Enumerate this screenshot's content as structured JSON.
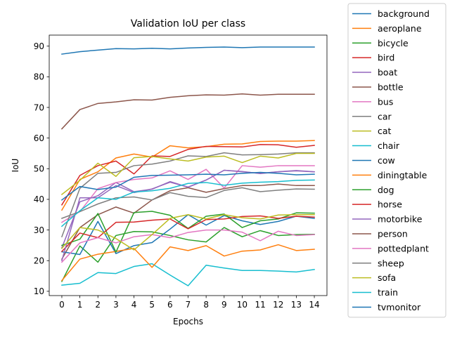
{
  "chart_data": {
    "type": "line",
    "title": "Validation IoU per class",
    "xlabel": "Epochs",
    "ylabel": "IoU",
    "xlim": [
      -0.7,
      14.7
    ],
    "ylim": [
      8.6,
      93.6
    ],
    "x": [
      0,
      1,
      2,
      3,
      4,
      5,
      6,
      7,
      8,
      9,
      10,
      11,
      12,
      13,
      14
    ],
    "x_ticks": [
      "0",
      "1",
      "2",
      "3",
      "4",
      "5",
      "6",
      "7",
      "8",
      "9",
      "10",
      "11",
      "12",
      "13",
      "14"
    ],
    "y_ticks": [
      10,
      20,
      30,
      40,
      50,
      60,
      70,
      80,
      90
    ],
    "grid": false,
    "legend_position": "outside-right",
    "series": [
      {
        "name": "background",
        "color": "#1f77b4",
        "values": [
          87.4,
          88.2,
          88.7,
          89.2,
          89.1,
          89.3,
          89.1,
          89.4,
          89.6,
          89.7,
          89.5,
          89.7,
          89.7,
          89.7,
          89.7
        ]
      },
      {
        "name": "aeroplane",
        "color": "#ff7f0e",
        "values": [
          36.5,
          46.5,
          49.0,
          53.5,
          54.8,
          53.8,
          57.5,
          56.8,
          57.2,
          58.0,
          58.1,
          58.9,
          59.0,
          59.0,
          59.2
        ]
      },
      {
        "name": "bicycle",
        "color": "#2ca02c",
        "values": [
          13.2,
          24.8,
          19.5,
          28.2,
          29.5,
          29.4,
          28.2,
          26.8,
          26.1,
          30.8,
          27.8,
          29.8,
          28.2,
          28.5,
          28.6
        ]
      },
      {
        "name": "bird",
        "color": "#d62728",
        "values": [
          38.2,
          47.8,
          51.0,
          52.5,
          48.3,
          54.2,
          54.0,
          56.3,
          57.3,
          57.2,
          57.1,
          57.9,
          57.8,
          57.0,
          57.6
        ]
      },
      {
        "name": "boat",
        "color": "#9467bd",
        "values": [
          24.2,
          39.2,
          41.2,
          45.5,
          42.5,
          43.3,
          45.8,
          44.0,
          46.3,
          49.5,
          49.0,
          48.5,
          49.0,
          49.3,
          49.0
        ]
      },
      {
        "name": "bottle",
        "color": "#8c564b",
        "values": [
          20.5,
          30.8,
          35.0,
          37.5,
          35.5,
          39.8,
          42.8,
          43.8,
          42.3,
          43.5,
          44.5,
          44.5,
          45.0,
          44.5,
          44.5
        ]
      },
      {
        "name": "bus",
        "color": "#e377c2",
        "values": [
          32.5,
          36.0,
          43.5,
          45.5,
          46.5,
          47.0,
          49.3,
          46.5,
          49.8,
          43.7,
          51.0,
          50.5,
          51.0,
          51.0,
          51.0
        ]
      },
      {
        "name": "car",
        "color": "#7f7f7f",
        "values": [
          27.8,
          43.6,
          48.5,
          48.8,
          51.0,
          51.5,
          52.5,
          54.2,
          54.0,
          55.2,
          54.5,
          54.6,
          54.8,
          55.2,
          55.2
        ]
      },
      {
        "name": "cat",
        "color": "#bcbd22",
        "values": [
          41.6,
          46.2,
          51.8,
          47.5,
          53.6,
          54.0,
          53.2,
          52.5,
          53.8,
          54.1,
          52.0,
          54.1,
          53.5,
          55.0,
          55.0
        ]
      },
      {
        "name": "chair",
        "color": "#17becf",
        "values": [
          12.0,
          12.6,
          16.1,
          15.8,
          18.1,
          19.0,
          15.3,
          11.8,
          18.5,
          17.6,
          16.8,
          16.8,
          16.6,
          16.3,
          17.1
        ]
      },
      {
        "name": "cow",
        "color": "#1f77b4",
        "values": [
          22.9,
          22.0,
          32.8,
          22.3,
          24.9,
          25.9,
          30.3,
          35.0,
          31.6,
          34.7,
          33.0,
          31.8,
          32.8,
          34.5,
          33.8
        ]
      },
      {
        "name": "diningtable",
        "color": "#ff7f0e",
        "values": [
          13.5,
          20.5,
          22.1,
          23.0,
          24.0,
          17.8,
          24.5,
          23.3,
          24.9,
          21.5,
          23.1,
          23.5,
          25.2,
          23.3,
          23.7
        ]
      },
      {
        "name": "dog",
        "color": "#2ca02c",
        "values": [
          25.0,
          27.0,
          35.4,
          22.8,
          35.7,
          36.1,
          34.8,
          30.5,
          34.5,
          35.2,
          30.8,
          33.0,
          33.6,
          35.6,
          35.5
        ]
      },
      {
        "name": "horse",
        "color": "#d62728",
        "values": [
          23.0,
          29.0,
          27.5,
          32.5,
          32.6,
          33.2,
          33.6,
          30.4,
          33.4,
          33.6,
          34.4,
          34.6,
          33.8,
          34.5,
          34.2
        ]
      },
      {
        "name": "motorbike",
        "color": "#9467bd",
        "values": [
          20.0,
          40.5,
          40.5,
          44.5,
          42.2,
          43.4,
          45.6,
          44.0,
          46.3,
          49.5,
          49.1,
          48.4,
          49.0,
          49.4,
          49.0
        ]
      },
      {
        "name": "person",
        "color": "#8c564b",
        "values": [
          63.0,
          69.3,
          71.3,
          71.8,
          72.5,
          72.4,
          73.3,
          73.8,
          74.1,
          74.0,
          74.4,
          74.0,
          74.3,
          74.3,
          74.3
        ]
      },
      {
        "name": "pottedplant",
        "color": "#e377c2",
        "values": [
          19.5,
          25.8,
          27.5,
          25.8,
          27.8,
          28.5,
          27.5,
          29.2,
          30.0,
          30.0,
          29.3,
          26.5,
          29.6,
          28.2,
          28.5
        ]
      },
      {
        "name": "sheep",
        "color": "#7f7f7f",
        "values": [
          33.8,
          36.0,
          38.5,
          40.5,
          40.8,
          39.8,
          42.2,
          41.0,
          40.6,
          42.9,
          43.8,
          42.5,
          43.0,
          43.4,
          43.3
        ]
      },
      {
        "name": "sofa",
        "color": "#bcbd22",
        "values": [
          24.0,
          30.8,
          30.0,
          27.2,
          23.5,
          28.5,
          33.8,
          35.0,
          33.6,
          35.0,
          34.0,
          33.6,
          34.9,
          35.0,
          35.0
        ]
      },
      {
        "name": "train",
        "color": "#17becf",
        "values": [
          31.2,
          36.3,
          40.5,
          40.0,
          42.4,
          42.8,
          43.6,
          45.2,
          45.5,
          44.6,
          45.3,
          45.6,
          45.8,
          46.2,
          46.3
        ]
      },
      {
        "name": "tvmonitor",
        "color": "#1f77b4",
        "values": [
          39.8,
          44.2,
          43.2,
          44.0,
          47.2,
          47.8,
          47.9,
          48.0,
          48.2,
          48.0,
          48.5,
          48.8,
          48.5,
          48.0,
          48.2
        ]
      }
    ]
  }
}
